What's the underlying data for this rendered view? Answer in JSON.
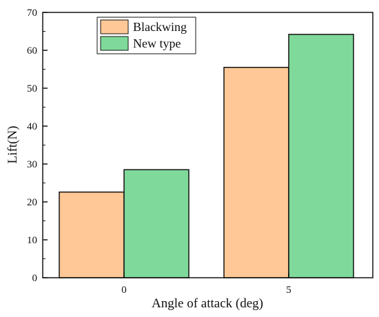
{
  "chart_data": {
    "type": "bar",
    "categories": [
      "0",
      "5"
    ],
    "series": [
      {
        "name": "Blackwing",
        "values": [
          22.6,
          55.5
        ],
        "color": "#FFC896"
      },
      {
        "name": "New type",
        "values": [
          28.5,
          64.2
        ],
        "color": "#7FD99A"
      }
    ],
    "title": "",
    "xlabel": "Angle of attack (deg)",
    "ylabel": "Lift(N)",
    "ylim": [
      0,
      70
    ],
    "yticks": [
      0,
      10,
      20,
      30,
      40,
      50,
      60,
      70
    ],
    "grid": false,
    "legend_position": "top-left"
  }
}
